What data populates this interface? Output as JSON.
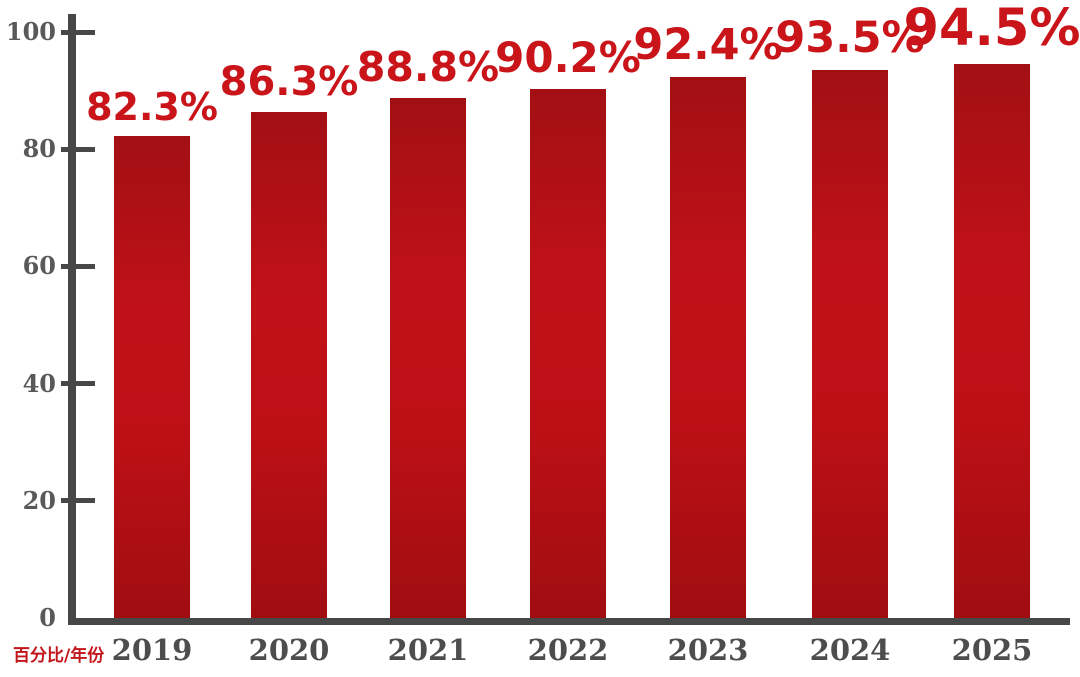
{
  "chart_data": {
    "type": "bar",
    "categories": [
      "2019",
      "2020",
      "2021",
      "2022",
      "2023",
      "2024",
      "2025"
    ],
    "values": [
      82.3,
      86.3,
      88.8,
      90.2,
      92.4,
      93.5,
      94.5
    ],
    "value_labels": [
      "82.3%",
      "86.3%",
      "88.8%",
      "90.2%",
      "92.4%",
      "93.5%",
      "94.5%"
    ],
    "title": "",
    "xlabel": "年份",
    "ylabel": "百分比",
    "ylim": [
      0,
      100
    ],
    "yticks": [
      0,
      20,
      40,
      60,
      80,
      100
    ],
    "grid": false,
    "legend": "none",
    "colors": {
      "bar_top": "#a21013",
      "bar_mid": "#c11118",
      "bar_bottom": "#a00d11",
      "value_label": "#c9141a",
      "axis": "#474747",
      "tick_label": "#595959",
      "category_label": "#4d4d4d",
      "caption": "#c3161b",
      "background": "#ffffff"
    }
  },
  "footer": {
    "axis_caption": "百分比/年份"
  }
}
